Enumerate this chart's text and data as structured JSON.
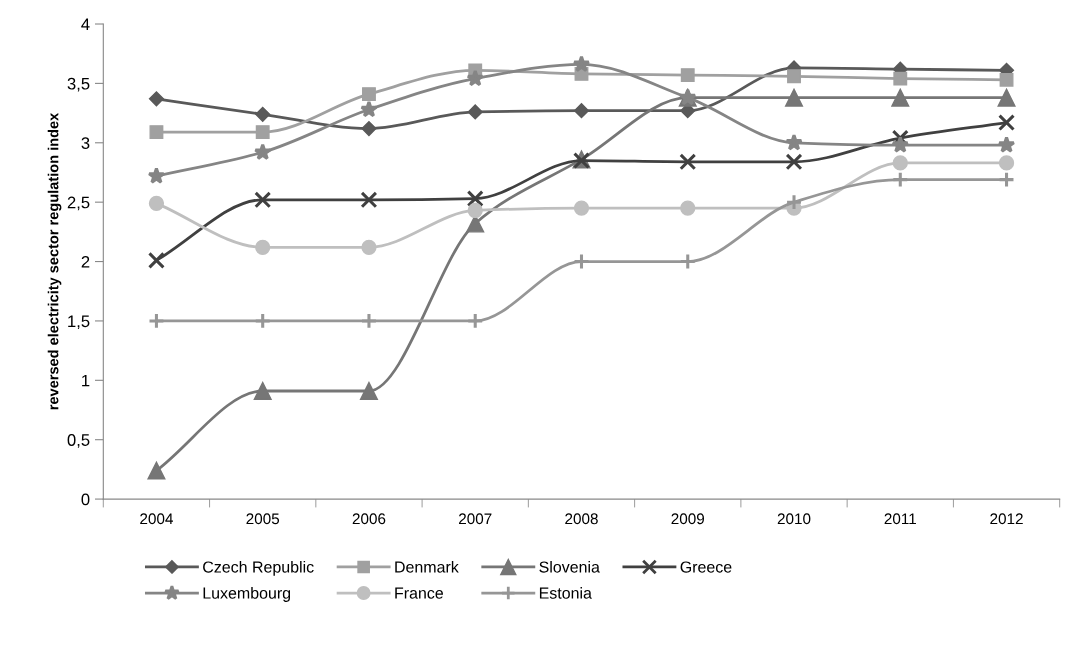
{
  "chart_data": {
    "type": "line",
    "ylabel": "reversed electricity sector regulation index",
    "categories": [
      "2004",
      "2005",
      "2006",
      "2007",
      "2008",
      "2009",
      "2010",
      "2011",
      "2012"
    ],
    "series": [
      {
        "name": "Czech Republic",
        "color": "#595959",
        "marker": "diamond",
        "values": [
          3.37,
          3.24,
          3.12,
          3.26,
          3.27,
          3.27,
          3.63,
          3.62,
          3.61
        ]
      },
      {
        "name": "Denmark",
        "color": "#a0a0a0",
        "marker": "square",
        "values": [
          3.09,
          3.09,
          3.41,
          3.61,
          3.58,
          3.57,
          3.56,
          3.54,
          3.53
        ]
      },
      {
        "name": "Slovenia",
        "color": "#767676",
        "marker": "triangle",
        "values": [
          0.24,
          0.91,
          0.91,
          2.32,
          2.86,
          3.38,
          3.38,
          3.38,
          3.38
        ]
      },
      {
        "name": "Greece",
        "color": "#404040",
        "marker": "cross",
        "values": [
          2.01,
          2.52,
          2.52,
          2.53,
          2.85,
          2.84,
          2.84,
          3.04,
          3.17
        ]
      },
      {
        "name": "Luxembourg",
        "color": "#858585",
        "marker": "star",
        "values": [
          2.72,
          2.92,
          3.28,
          3.54,
          3.66,
          3.38,
          3.0,
          2.98,
          2.98
        ]
      },
      {
        "name": "France",
        "color": "#bfbfbf",
        "marker": "circle",
        "values": [
          2.49,
          2.12,
          2.12,
          2.43,
          2.45,
          2.45,
          2.45,
          2.83,
          2.83
        ]
      },
      {
        "name": "Estonia",
        "color": "#969696",
        "marker": "plus",
        "values": [
          1.5,
          1.5,
          1.5,
          1.5,
          2.0,
          2.0,
          2.5,
          2.69,
          2.69
        ]
      }
    ],
    "ylim": [
      0,
      4
    ],
    "yticks": [
      0,
      {
        "value": 0.5,
        "label": "0,5"
      },
      1,
      {
        "value": 1.5,
        "label": "1,5"
      },
      2,
      {
        "value": 2.5,
        "label": "2,5"
      },
      3,
      {
        "value": 3.5,
        "label": "3,5"
      },
      4
    ],
    "grid": false,
    "legend": "bottom",
    "line_style": "solid"
  }
}
